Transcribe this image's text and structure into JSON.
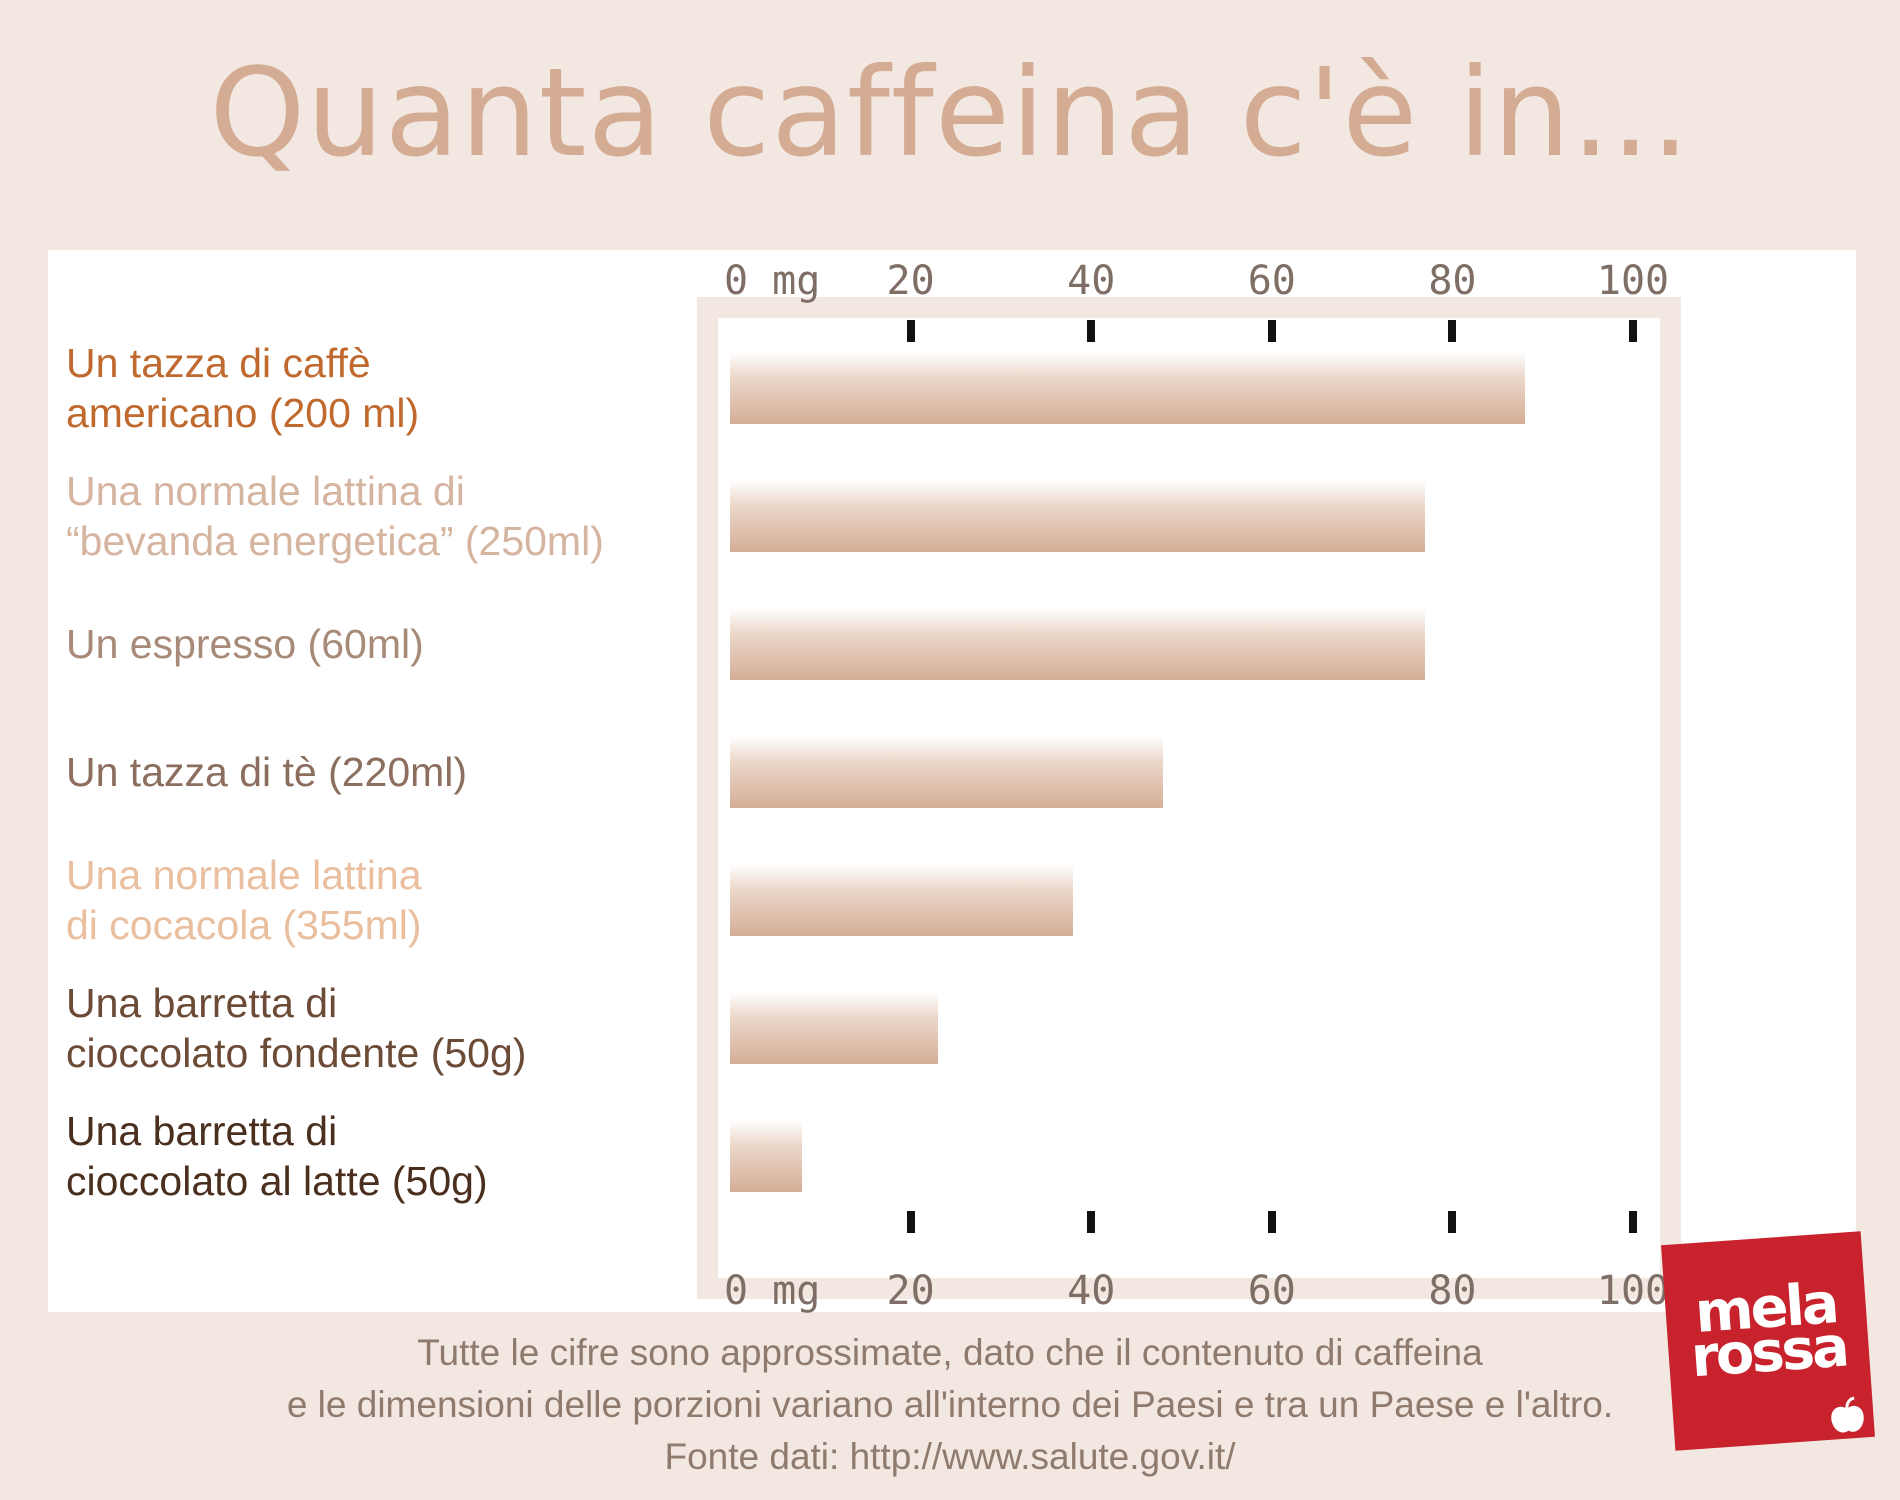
{
  "title": "Quanta caffeina c'è in...",
  "chart_data": {
    "type": "bar",
    "orientation": "horizontal",
    "title": "Quanta caffeina c'è in...",
    "categories": [
      [
        "Un tazza di caffè",
        "americano (200 ml)"
      ],
      [
        "Una normale lattina di",
        "“bevanda energetica” (250ml)"
      ],
      [
        "Un espresso (60ml)"
      ],
      [
        "Un tazza di tè (220ml)"
      ],
      [
        "Una normale lattina",
        "di cocacola (355ml)"
      ],
      [
        "Una barretta di",
        "cioccolato fondente (50g)"
      ],
      [
        "Una barretta di",
        "cioccolato al latte (50g)"
      ]
    ],
    "values": [
      88,
      77,
      77,
      48,
      38,
      23,
      8
    ],
    "label_colors": [
      "#c0692e",
      "#d5b4a0",
      "#a88a78",
      "#8c6e5e",
      "#eabf9f",
      "#6b4a36",
      "#4a2e1e"
    ],
    "xlim": [
      0,
      100
    ],
    "ticks": [
      "0 mg",
      "20",
      "40",
      "60",
      "80",
      "100"
    ],
    "tick_values": [
      0,
      20,
      40,
      60,
      80,
      100
    ],
    "grid": false,
    "legend": "none"
  },
  "footnote": [
    "Tutte le cifre sono approssimate, dato che il contenuto di caffeina",
    "e le dimensioni delle porzioni variano all'interno dei Paesi e tra un Paese e l'altro.",
    "Fonte dati: http://www.salute.gov.it/"
  ],
  "logo": {
    "line1": "mela",
    "line2": "rossa",
    "color": "#c8232c"
  }
}
